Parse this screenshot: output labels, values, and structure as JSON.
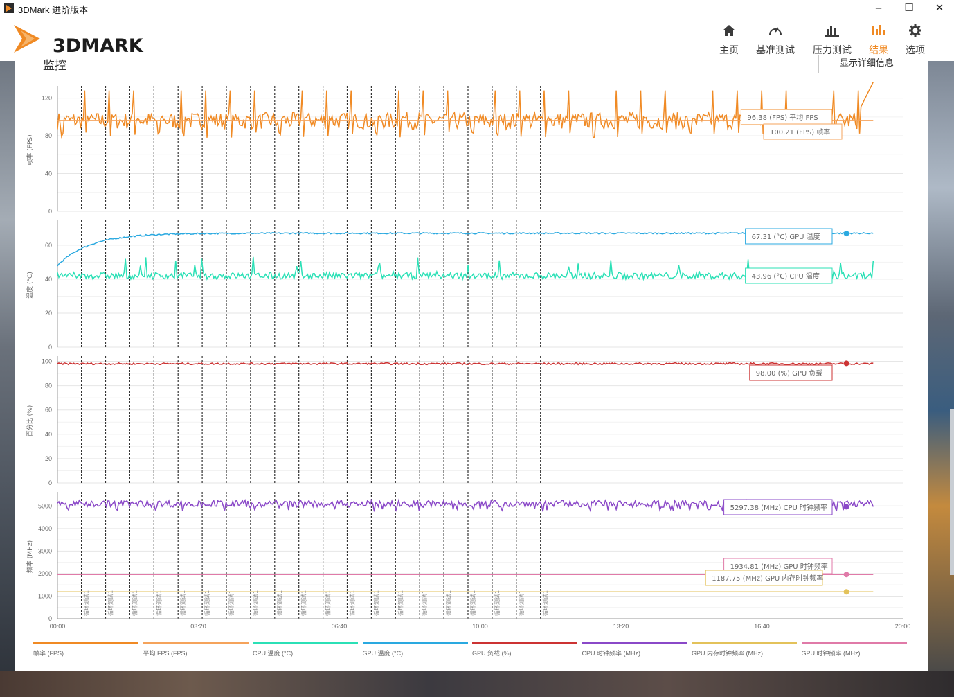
{
  "window": {
    "title": "3DMark 进阶版本",
    "controls": {
      "minimize": "–",
      "maximize": "☐",
      "close": "✕"
    }
  },
  "header": {
    "logo_text": "3DMARK",
    "nav": [
      {
        "label": "主页",
        "icon": "home-icon",
        "active": false
      },
      {
        "label": "基准测试",
        "icon": "gauge-icon",
        "active": false
      },
      {
        "label": "压力测试",
        "icon": "bar-chart-icon",
        "active": false
      },
      {
        "label": "结果",
        "icon": "results-icon",
        "active": true
      },
      {
        "label": "选项",
        "icon": "gear-icon",
        "active": false
      }
    ]
  },
  "main": {
    "section_title": "监控",
    "details_button": "显示详细信息"
  },
  "colors": {
    "fps": "#f08a24",
    "avg_fps": "#f5a35b",
    "cpu_temp": "#2be0b6",
    "gpu_temp": "#2aa9e0",
    "gpu_load": "#cc3333",
    "cpu_clock": "#8a48c8",
    "gpu_mem_clock": "#e3c25a",
    "gpu_clock": "#e07aa8"
  },
  "chart_data": {
    "type": "line",
    "x_ticks": [
      "00:00",
      "03:20",
      "06:40",
      "10:00",
      "13:20",
      "16:40",
      "20:00"
    ],
    "x_range_seconds": [
      0,
      1200
    ],
    "loop_marker_label": "循环测试1",
    "panels": [
      {
        "id": "fps",
        "ylabel": "帧率 (FPS)",
        "ylim": [
          0,
          130
        ],
        "yticks": [
          0,
          40,
          80,
          120
        ],
        "series": [
          {
            "key": "fps",
            "name": "帧率 (FPS)",
            "typical_low": 80,
            "typical_high": 105,
            "spike": 128,
            "end_value": 137
          },
          {
            "key": "avg_fps",
            "name": "平均 FPS (FPS)",
            "value": 96.38
          }
        ],
        "callouts": [
          {
            "text": "96.38 (FPS) 平均 FPS"
          },
          {
            "text": "100.21 (FPS) 帧率"
          }
        ]
      },
      {
        "id": "temp",
        "ylabel": "温度 (°C)",
        "ylim": [
          0,
          73
        ],
        "yticks": [
          0,
          20,
          40,
          60
        ],
        "series": [
          {
            "key": "gpu_temp",
            "name": "GPU 温度 (°C)",
            "start": 48,
            "plateau": 67
          },
          {
            "key": "cpu_temp",
            "name": "CPU 温度 (°C)",
            "base": 42,
            "noise": 4
          }
        ],
        "callouts": [
          {
            "text": "67.31 (°C) GPU 温度"
          },
          {
            "text": "43.96 (°C) CPU 温度"
          }
        ]
      },
      {
        "id": "load",
        "ylabel": "百分比 (%)",
        "ylim": [
          0,
          102
        ],
        "yticks": [
          0,
          20,
          40,
          60,
          80,
          100
        ],
        "series": [
          {
            "key": "gpu_load",
            "name": "GPU 负载 (%)",
            "value": 98
          }
        ],
        "callouts": [
          {
            "text": "98.00 (%) GPU 负载"
          }
        ]
      },
      {
        "id": "clock",
        "ylabel": "频率 (MHz)",
        "ylim": [
          0,
          5500
        ],
        "yticks": [
          0,
          1000,
          2000,
          3000,
          4000,
          5000
        ],
        "series": [
          {
            "key": "cpu_clock",
            "name": "CPU 时钟频率 (MHz)",
            "base": 5100,
            "noise": 150
          },
          {
            "key": "gpu_clock",
            "name": "GPU 时钟频率 (MHz)",
            "value": 1960
          },
          {
            "key": "gpu_mem_clock",
            "name": "GPU 内存时钟频率 (MHz)",
            "value": 1188
          }
        ],
        "callouts": [
          {
            "text": "5297.38 (MHz) CPU 时钟频率"
          },
          {
            "text": "1934.81 (MHz) GPU 时钟频率"
          },
          {
            "text": "1187.75 (MHz) GPU 内存时钟频率"
          }
        ]
      }
    ],
    "legend": [
      {
        "key": "fps",
        "label": "帧率 (FPS)"
      },
      {
        "key": "avg_fps",
        "label": "平均 FPS (FPS)"
      },
      {
        "key": "cpu_temp",
        "label": "CPU 温度 (°C)"
      },
      {
        "key": "gpu_temp",
        "label": "GPU 温度 (°C)"
      },
      {
        "key": "gpu_load",
        "label": "GPU 负载 (%)"
      },
      {
        "key": "cpu_clock",
        "label": "CPU 时钟频率 (MHz)"
      },
      {
        "key": "gpu_mem_clock",
        "label": "GPU 内存时钟频率 (MHz)"
      },
      {
        "key": "gpu_clock",
        "label": "GPU 时钟频率 (MHz)"
      }
    ]
  }
}
